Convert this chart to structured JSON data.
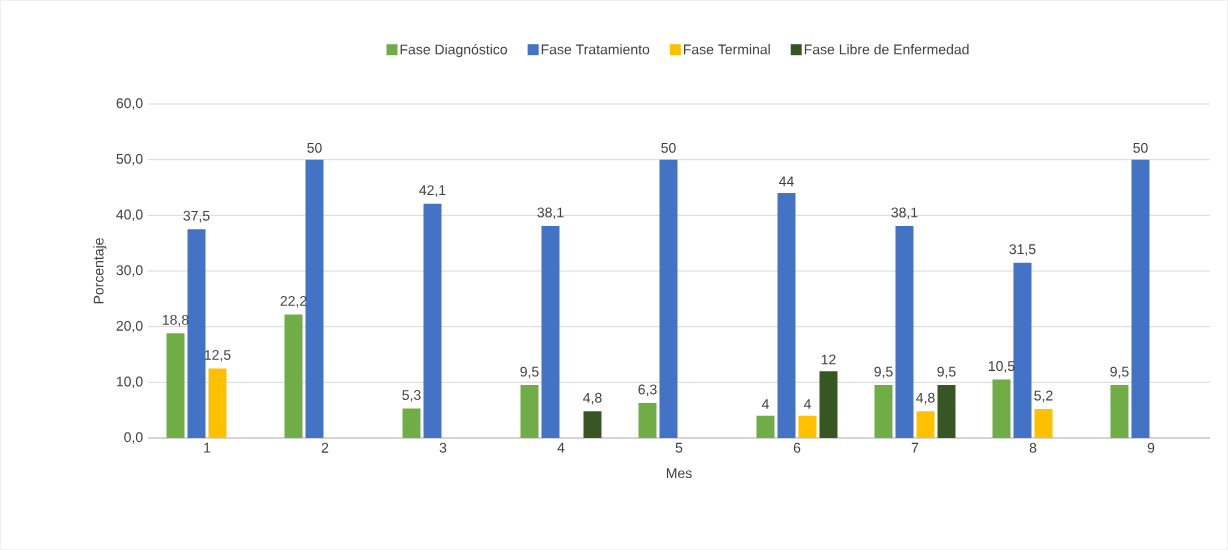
{
  "chart_data": {
    "type": "bar",
    "xlabel": "Mes",
    "ylabel": "Porcentaje",
    "categories": [
      "1",
      "2",
      "3",
      "4",
      "5",
      "6",
      "7",
      "8",
      "9"
    ],
    "series": [
      {
        "name": "Fase Diagnóstico",
        "color": "#70ad47",
        "values": [
          18.8,
          22.2,
          5.3,
          9.5,
          6.3,
          4,
          9.5,
          10.5,
          9.5
        ],
        "value_labels": [
          "18,8",
          "22,2",
          "5,3",
          "9,5",
          "6,3",
          "4",
          "9,5",
          "10,5",
          "9,5"
        ]
      },
      {
        "name": "Fase Tratamiento",
        "color": "#4472c4",
        "values": [
          37.5,
          50,
          42.1,
          38.1,
          50,
          44,
          38.1,
          31.5,
          50
        ],
        "value_labels": [
          "37,5",
          "50",
          "42,1",
          "38,1",
          "50",
          "44",
          "38,1",
          "31,5",
          "50"
        ]
      },
      {
        "name": "Fase Terminal",
        "color": "#ffc000",
        "values": [
          12.5,
          null,
          null,
          null,
          null,
          4,
          4.8,
          5.2,
          null
        ],
        "value_labels": [
          "12,5",
          null,
          null,
          null,
          null,
          "4",
          "4,8",
          "5,2",
          null
        ]
      },
      {
        "name": "Fase Libre de Enfermedad",
        "color": "#375623",
        "values": [
          null,
          null,
          null,
          4.8,
          null,
          12,
          9.5,
          null,
          null
        ],
        "value_labels": [
          null,
          null,
          null,
          "4,8",
          null,
          "12",
          "9,5",
          null,
          null
        ]
      }
    ],
    "ylim": [
      0,
      60
    ],
    "yticks": [
      {
        "value": 0,
        "label": "0,0"
      },
      {
        "value": 10,
        "label": "10,0"
      },
      {
        "value": 20,
        "label": "20,0"
      },
      {
        "value": 30,
        "label": "30,0"
      },
      {
        "value": 40,
        "label": "40,0"
      },
      {
        "value": 50,
        "label": "50,0"
      },
      {
        "value": 60,
        "label": "60,0"
      }
    ],
    "grid": "y",
    "legend": "top"
  }
}
